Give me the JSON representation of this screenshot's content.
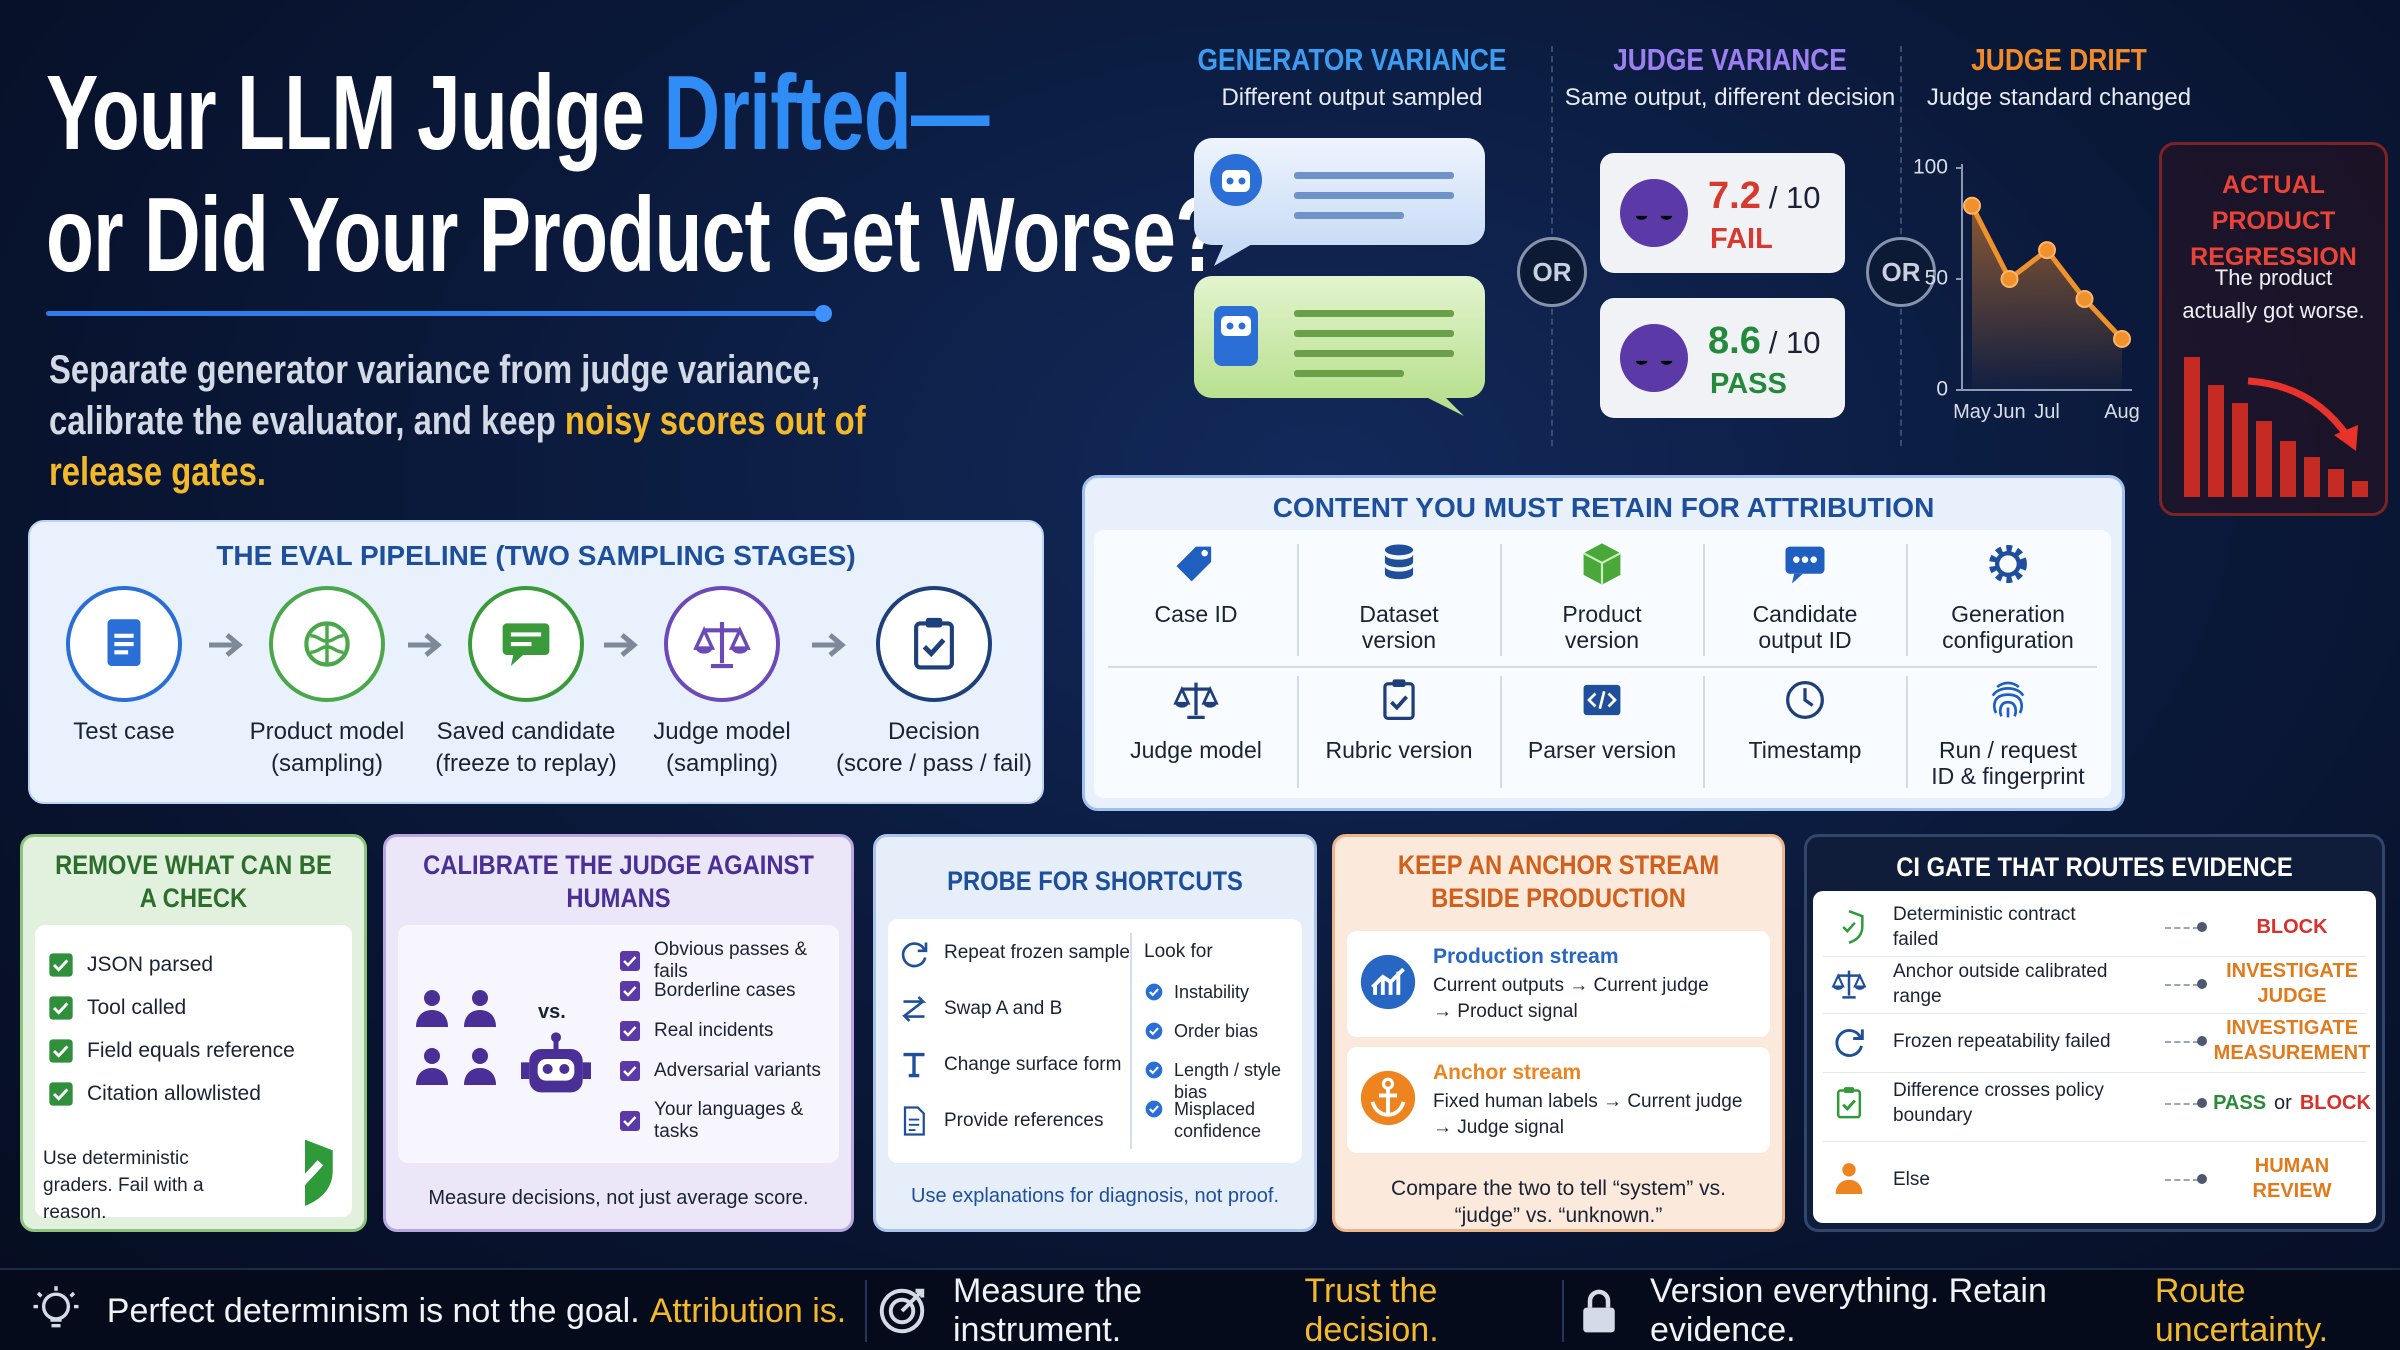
{
  "header": {
    "title_parts": [
      "Your LLM Judge",
      "Drifted—",
      "or Did Your Product Get Worse?"
    ],
    "subtitle": [
      "Separate generator variance from judge variance, calibrate the evaluator, and keep",
      "noisy scores out of release gates."
    ]
  },
  "variance": {
    "generator": {
      "title": "GENERATOR VARIANCE",
      "subtitle": "Different output sampled"
    },
    "judge": {
      "title": "JUDGE VARIANCE",
      "subtitle": "Same output, different decision",
      "scores": [
        {
          "score": 7.2,
          "out_of": "/ 10",
          "verdict": "FAIL"
        },
        {
          "score": 8.6,
          "out_of": "/ 10",
          "verdict": "PASS"
        }
      ]
    },
    "or_labels": [
      "OR",
      "OR"
    ]
  },
  "chart_data": {
    "type": "line",
    "title": "JUDGE DRIFT",
    "subtitle": "Judge standard changed",
    "categories": [
      "May",
      "Jun",
      "Jul",
      null,
      "Aug"
    ],
    "values": [
      83,
      50,
      63,
      41,
      23
    ],
    "color": "#f0922b",
    "ylim": [
      0,
      100
    ],
    "yticks": [
      0,
      50,
      100
    ]
  },
  "regression": {
    "title": "ACTUAL PRODUCT REGRESSION",
    "text": "The product actually got worse."
  },
  "pipeline": {
    "title": "THE EVAL PIPELINE (TWO SAMPLING STAGES)",
    "steps": [
      {
        "label": "Test case"
      },
      {
        "label": "Product model",
        "note": "(sampling)"
      },
      {
        "label": "Saved candidate",
        "note": "(freeze to replay)"
      },
      {
        "label": "Judge model",
        "note": "(sampling)"
      },
      {
        "label": "Decision",
        "note": "(score / pass / fail)"
      }
    ]
  },
  "retain": {
    "title": "CONTENT YOU MUST RETAIN FOR ATTRIBUTION",
    "items": [
      "Case ID",
      "Dataset version",
      "Product version",
      "Candidate output ID",
      "Generation configuration",
      "Judge model",
      "Rubric version",
      "Parser version",
      "Timestamp",
      "Run / request ID & fingerprint"
    ]
  },
  "cards": {
    "checks": {
      "title": "REMOVE WHAT CAN BE A CHECK",
      "items": [
        "JSON parsed",
        "Tool called",
        "Field equals reference",
        "Citation allowlisted"
      ],
      "footer": "Use deterministic graders. Fail with a reason."
    },
    "calibrate": {
      "title": "CALIBRATE THE JUDGE AGAINST HUMANS",
      "vs": "vs.",
      "items": [
        "Obvious passes & fails",
        "Borderline cases",
        "Real incidents",
        "Adversarial variants",
        "Your languages & tasks"
      ],
      "footer": "Measure decisions, not just average score."
    },
    "probe": {
      "title": "PROBE FOR SHORTCUTS",
      "actions": [
        "Repeat frozen sample",
        "Swap A and B",
        "Change surface form",
        "Provide references"
      ],
      "look_for_title": "Look for",
      "look_for": [
        "Instability",
        "Order bias",
        "Length / style bias",
        "Misplaced confidence"
      ],
      "footer": "Use explanations for diagnosis, not proof."
    },
    "anchor": {
      "title": "KEEP AN ANCHOR STREAM BESIDE PRODUCTION",
      "streams": [
        {
          "name": "Production stream",
          "line1": "Current outputs → Current judge",
          "line2": "→ Product signal"
        },
        {
          "name": "Anchor stream",
          "line1": "Fixed human labels → Current judge",
          "line2": "→ Judge signal"
        }
      ],
      "footer": "Compare the two to tell “system” vs. “judge” vs. “unknown.”"
    },
    "ci_gate": {
      "title": "CI GATE THAT ROUTES EVIDENCE",
      "rows": [
        {
          "condition": "Deterministic contract failed",
          "outcome": "BLOCK"
        },
        {
          "condition": "Anchor outside calibrated range",
          "outcome": "INVESTIGATE JUDGE"
        },
        {
          "condition": "Frozen repeatability failed",
          "outcome": "INVESTIGATE MEASUREMENT"
        },
        {
          "condition": "Difference crosses policy boundary",
          "outcome_parts": [
            "PASS",
            "or",
            "BLOCK"
          ]
        },
        {
          "condition": "Else",
          "outcome": "HUMAN REVIEW"
        }
      ]
    }
  },
  "footer": [
    {
      "text": "Perfect determinism is not the goal.",
      "highlight": "Attribution is."
    },
    {
      "text": "Measure the instrument.",
      "highlight": "Trust the decision."
    },
    {
      "text": "Version everything. Retain evidence.",
      "highlight": "Route uncertainty."
    }
  ]
}
